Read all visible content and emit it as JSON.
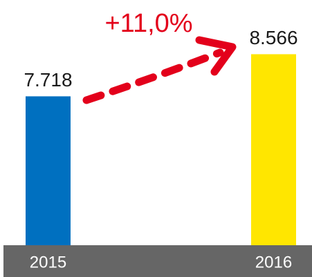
{
  "chart_data": {
    "type": "bar",
    "categories": [
      "2015",
      "2016"
    ],
    "values": [
      7.718,
      8.566
    ],
    "colors": [
      "#0070c0",
      "#ffe600"
    ],
    "annotation": "+11,0%",
    "ylim": [
      4.72,
      9.24
    ]
  }
}
